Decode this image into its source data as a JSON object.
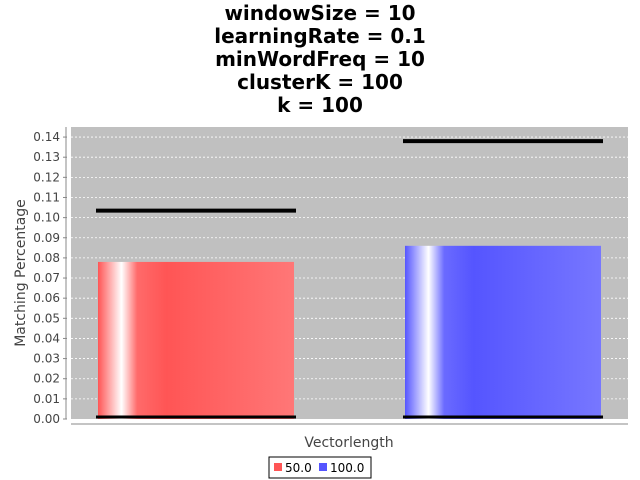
{
  "chart_data": {
    "type": "bar",
    "title_lines": [
      "windowSize = 10",
      "learningRate = 0.1",
      "minWordFreq = 10",
      "clusterK = 100",
      "k = 100"
    ],
    "xlabel": "Vectorlength",
    "ylabel": "Matching Percentage",
    "ylim": [
      0,
      0.145
    ],
    "yticks": [
      "0.00",
      "0.01",
      "0.02",
      "0.03",
      "0.04",
      "0.05",
      "0.06",
      "0.07",
      "0.08",
      "0.09",
      "0.10",
      "0.11",
      "0.12",
      "0.13",
      "0.14"
    ],
    "grid": true,
    "legend_position": "bottom-center",
    "series": [
      {
        "name": "50.0",
        "value": 0.078,
        "error_high": 0.1035,
        "error_low": 0.0,
        "color": "#ff5555"
      },
      {
        "name": "100.0",
        "value": 0.086,
        "error_high": 0.138,
        "error_low": 0.0,
        "color": "#5555ff"
      }
    ],
    "plot_background": "#c0c0c0"
  }
}
